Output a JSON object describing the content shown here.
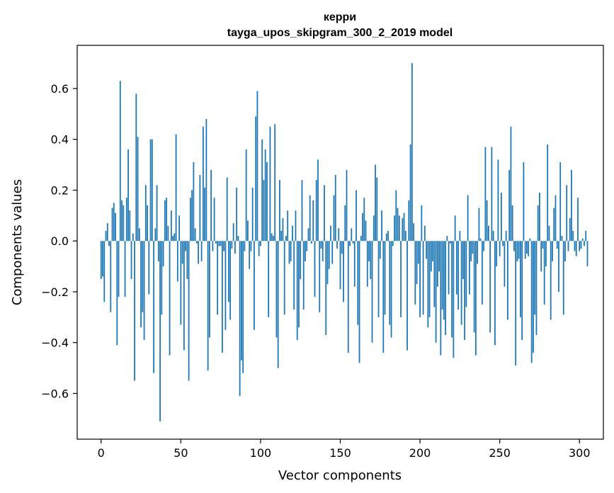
{
  "chart_data": {
    "type": "bar",
    "title": "керри",
    "subtitle": "tayga_upos_skipgram_300_2_2019 model",
    "xlabel": "Vector components",
    "ylabel": "Components values",
    "xlim": [
      -15,
      315
    ],
    "ylim": [
      -0.78,
      0.77
    ],
    "xticks": [
      0,
      50,
      100,
      150,
      200,
      250,
      300
    ],
    "xtick_labels": [
      "0",
      "50",
      "100",
      "150",
      "200",
      "250",
      "300"
    ],
    "yticks": [
      -0.6,
      -0.4,
      -0.2,
      0.0,
      0.2,
      0.4,
      0.6
    ],
    "ytick_labels": [
      "−0.6",
      "−0.4",
      "−0.2",
      "0.0",
      "0.2",
      "0.4",
      "0.6"
    ],
    "color": "#1f77b4",
    "grid": false,
    "values": [
      -0.15,
      -0.14,
      -0.24,
      0.04,
      0.07,
      -0.02,
      -0.28,
      0.13,
      0.15,
      0.11,
      -0.41,
      -0.22,
      0.63,
      0.16,
      0.14,
      -0.22,
      0.17,
      0.36,
      0.12,
      -0.15,
      0.03,
      -0.55,
      0.58,
      0.41,
      0.05,
      -0.34,
      -0.28,
      -0.39,
      0.22,
      0.14,
      -0.21,
      0.4,
      0.4,
      -0.52,
      0.05,
      0.22,
      -0.08,
      -0.71,
      -0.29,
      -0.1,
      0.16,
      0.17,
      0.06,
      -0.45,
      0.12,
      0.02,
      0.03,
      0.42,
      -0.16,
      0.1,
      -0.33,
      -0.09,
      -0.43,
      -0.04,
      -0.15,
      -0.55,
      0.17,
      0.2,
      0.31,
      0.05,
      -0.01,
      -0.09,
      0.26,
      -0.08,
      0.45,
      0.21,
      0.48,
      -0.51,
      -0.38,
      0.28,
      -0.04,
      0.17,
      -0.01,
      -0.29,
      -0.02,
      -0.02,
      -0.44,
      -0.04,
      -0.35,
      0.25,
      -0.24,
      -0.31,
      -0.03,
      0.07,
      -0.05,
      0.21,
      0.02,
      -0.61,
      -0.47,
      -0.52,
      -0.04,
      0.36,
      0.08,
      -0.11,
      -0.04,
      0.21,
      -0.35,
      0.49,
      0.59,
      -0.06,
      -0.02,
      0.4,
      0.24,
      0.36,
      0.31,
      -0.3,
      0.45,
      0.03,
      0.02,
      0.46,
      -0.38,
      -0.5,
      0.24,
      0.04,
      0.09,
      -0.29,
      0.02,
      0.12,
      -0.09,
      -0.08,
      0.06,
      -0.27,
      0.12,
      -0.39,
      -0.34,
      -0.15,
      0.24,
      -0.27,
      -0.08,
      -0.04,
      0.05,
      0.18,
      -0.01,
      0.16,
      -0.22,
      0.24,
      0.32,
      -0.28,
      -0.03,
      -0.08,
      0.22,
      -0.37,
      -0.17,
      -0.11,
      0.06,
      -0.09,
      0.18,
      0.26,
      -0.03,
      0.05,
      -0.19,
      -0.05,
      -0.24,
      0.14,
      0.28,
      -0.44,
      -0.02,
      0.05,
      -0.01,
      -0.18,
      0.2,
      -0.33,
      -0.48,
      0.02,
      0.11,
      0.17,
      0.08,
      -0.18,
      -0.08,
      -0.15,
      -0.4,
      0.1,
      0.3,
      0.25,
      -0.3,
      -0.07,
      0.12,
      -0.44,
      -0.29,
      0.03,
      0.04,
      -0.33,
      -0.38,
      -0.02,
      0.1,
      0.2,
      0.13,
      0.1,
      -0.3,
      0.09,
      0.11,
      0.04,
      -0.43,
      0.16,
      0.38,
      0.7,
      0.07,
      -0.25,
      -0.17,
      -0.09,
      -0.3,
      0.14,
      -0.29,
      0.06,
      -0.07,
      -0.34,
      -0.3,
      -0.12,
      -0.08,
      -0.26,
      -0.4,
      -0.18,
      -0.12,
      -0.45,
      -0.27,
      -0.31,
      -0.37,
      0.02,
      -0.21,
      -0.01,
      -0.38,
      -0.46,
      0.1,
      -0.21,
      -0.27,
      0.04,
      -0.33,
      -0.15,
      -0.39,
      -0.26,
      0.18,
      -0.21,
      -0.08,
      -0.05,
      -0.36,
      -0.45,
      -0.09,
      0.13,
      0.01,
      -0.25,
      -0.04,
      0.37,
      0.16,
      0.06,
      -0.36,
      0.37,
      0.04,
      -0.41,
      -0.1,
      0.32,
      -0.06,
      0.19,
      -0.02,
      -0.18,
      0.04,
      -0.31,
      0.28,
      0.45,
      0.14,
      -0.04,
      -0.49,
      -0.08,
      -0.07,
      -0.3,
      -0.39,
      0.31,
      -0.07,
      -0.05,
      -0.06,
      0.01,
      -0.48,
      -0.44,
      -0.29,
      -0.37,
      0.14,
      0.19,
      -0.12,
      -0.03,
      -0.25,
      -0.1,
      0.38,
      0.06,
      -0.31,
      -0.08,
      0.13,
      0.18,
      -0.03,
      -0.2,
      0.31,
      0.02,
      -0.29,
      -0.08,
      0.22,
      -0.04,
      0.09,
      0.28,
      0.04,
      -0.04,
      -0.06,
      0.17,
      -0.04,
      -0.03,
      0.01,
      -0.02,
      0.04,
      -0.1
    ]
  }
}
